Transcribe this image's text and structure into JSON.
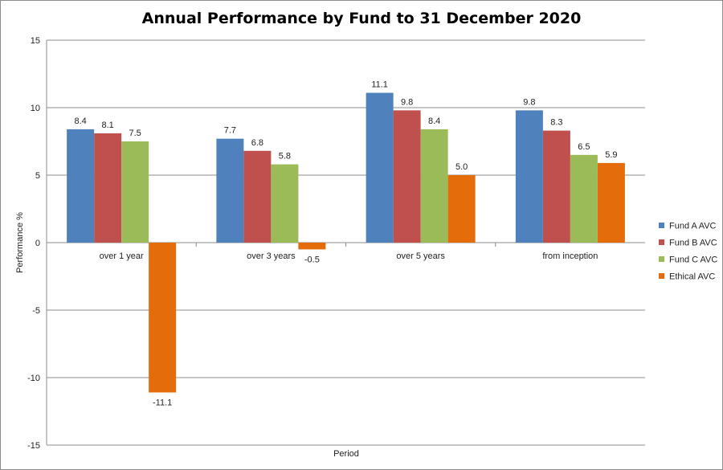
{
  "chart_data": {
    "type": "bar",
    "title": "Annual Performance by Fund to 31 December 2020",
    "xlabel": "Period",
    "ylabel": "Performance %",
    "categories": [
      "over 1 year",
      "over 3 years",
      "over 5 years",
      "from inception"
    ],
    "series": [
      {
        "name": "Fund A AVC",
        "values": [
          8.4,
          7.7,
          11.1,
          9.8
        ],
        "color": "#4f81bd"
      },
      {
        "name": "Fund B AVC",
        "values": [
          8.1,
          6.8,
          9.8,
          8.3
        ],
        "color": "#c0504d"
      },
      {
        "name": "Fund C AVC",
        "values": [
          7.5,
          5.8,
          8.4,
          6.5
        ],
        "color": "#9bbb59"
      },
      {
        "name": "Ethical AVC",
        "values": [
          -11.1,
          -0.5,
          5.0,
          5.9
        ],
        "color": "#e46c0a"
      }
    ],
    "ylim": [
      -15,
      15
    ],
    "yticks": [
      15,
      10,
      5,
      0,
      -5,
      -10,
      -15
    ],
    "grid": true,
    "legend": "right"
  }
}
